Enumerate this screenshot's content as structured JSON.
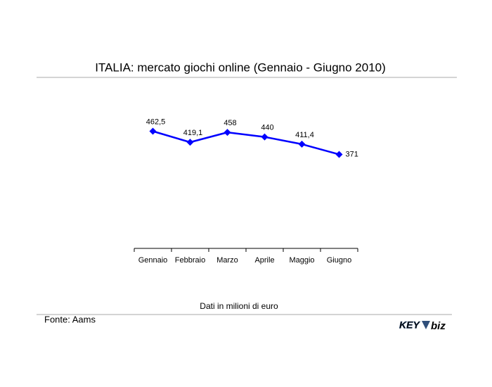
{
  "chart_data": {
    "type": "line",
    "title": "ITALIA: mercato giochi online (Gennaio - Giugno 2010)",
    "categories": [
      "Gennaio",
      "Febbraio",
      "Marzo",
      "Aprile",
      "Maggio",
      "Giugno"
    ],
    "series": [
      {
        "name": "mercato giochi online",
        "color": "#0000ff",
        "values": [
          462.5,
          419.1,
          458,
          440,
          411.4,
          371
        ],
        "value_labels": [
          "462,5",
          "419,1",
          "458",
          "440",
          "411,4",
          "371"
        ]
      }
    ],
    "ylim": [
      0,
      500
    ],
    "note": "Dati in milioni di euro",
    "source": "Fonte: Aams",
    "logo": [
      "KEY",
      "biz"
    ]
  }
}
